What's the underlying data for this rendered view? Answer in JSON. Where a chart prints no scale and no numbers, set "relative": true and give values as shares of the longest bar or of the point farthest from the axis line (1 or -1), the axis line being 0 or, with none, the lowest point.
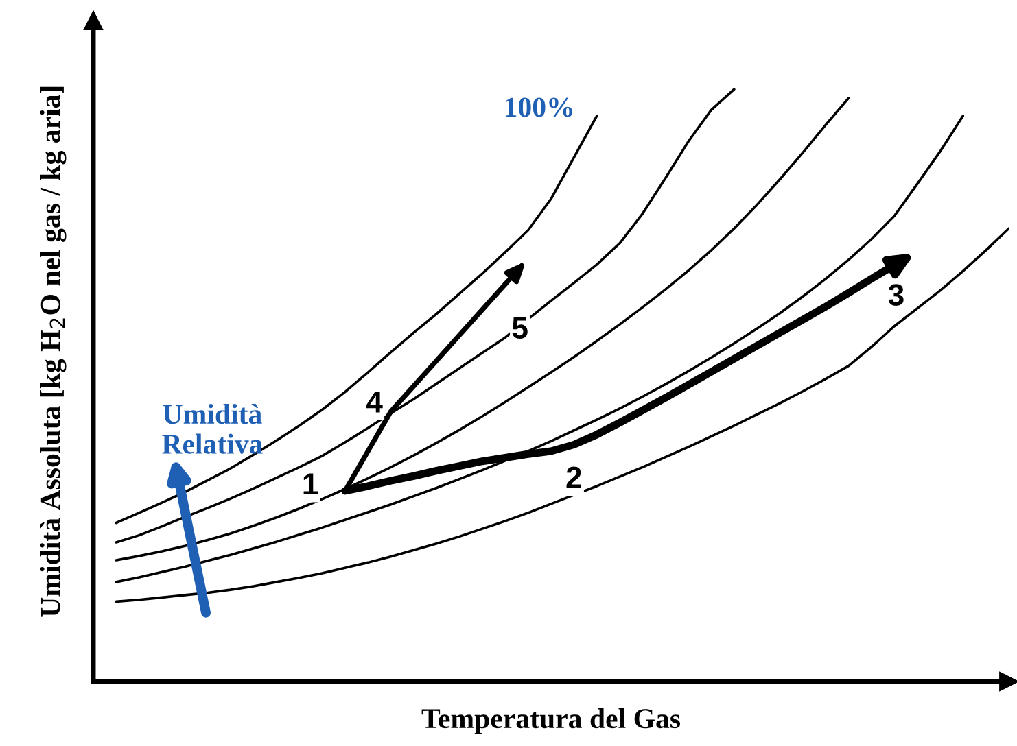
{
  "chart_data": {
    "type": "line",
    "relative": true,
    "xlabel": "Temperatura del Gas",
    "ylabel": "Umidità Assoluta [kg H$_{2}$O nel gas / kg aria]",
    "legend": false,
    "marker": "none",
    "line_style": "solid",
    "categories": [
      null,
      null,
      null,
      null,
      null,
      null,
      null,
      null,
      null,
      null,
      null,
      null,
      null,
      null,
      null,
      null,
      null,
      null,
      null,
      null,
      null,
      null,
      null,
      null,
      null,
      null,
      null,
      null,
      null,
      null,
      null,
      null,
      null,
      null,
      null,
      null,
      null,
      null,
      null,
      null,
      null
    ],
    "series": [
      {
        "color": "#000000",
        "values": [
          null,
          0.268,
          0.285,
          0.302,
          0.32,
          0.34,
          0.36,
          0.383,
          0.407,
          0.432,
          0.459,
          0.489,
          0.522,
          0.556,
          0.589,
          0.621,
          0.655,
          0.689,
          0.725,
          0.762,
          0.815,
          0.885,
          0.955,
          null,
          null,
          null,
          null,
          null,
          null,
          null,
          null,
          null,
          null,
          null,
          null,
          null,
          null,
          null,
          null,
          null,
          null
        ]
      },
      {
        "color": "#000000",
        "values": [
          null,
          0.235,
          0.247,
          0.262,
          0.278,
          0.293,
          0.309,
          0.326,
          0.344,
          0.362,
          0.381,
          0.404,
          0.428,
          0.453,
          0.477,
          0.503,
          0.529,
          0.555,
          0.581,
          0.612,
          0.643,
          0.673,
          0.704,
          0.74,
          0.79,
          0.85,
          0.912,
          0.965,
          1.0,
          null,
          null,
          null,
          null,
          null,
          null,
          null,
          null,
          null,
          null,
          null,
          null
        ]
      },
      {
        "color": "#000000",
        "values": [
          null,
          0.205,
          0.212,
          0.22,
          0.229,
          0.239,
          0.25,
          0.263,
          0.277,
          0.292,
          0.308,
          0.325,
          0.343,
          0.362,
          0.382,
          0.403,
          0.425,
          0.448,
          0.472,
          0.497,
          0.522,
          0.548,
          0.575,
          0.603,
          0.632,
          0.662,
          0.694,
          0.728,
          0.765,
          0.805,
          0.848,
          0.893,
          0.94,
          0.985,
          null,
          null,
          null,
          null,
          null,
          null,
          null
        ]
      },
      {
        "color": "#000000",
        "values": [
          null,
          0.168,
          0.176,
          0.185,
          0.194,
          0.204,
          0.214,
          0.225,
          0.236,
          0.248,
          0.26,
          0.273,
          0.286,
          0.299,
          0.313,
          0.327,
          0.342,
          0.357,
          0.373,
          0.389,
          0.406,
          0.424,
          0.442,
          0.461,
          0.481,
          0.502,
          0.524,
          0.547,
          0.571,
          0.596,
          0.622,
          0.65,
          0.68,
          0.712,
          0.747,
          0.786,
          0.84,
          0.895,
          0.955,
          null,
          null
        ]
      },
      {
        "color": "#000000",
        "values": [
          null,
          0.135,
          0.138,
          0.142,
          0.146,
          0.15,
          0.155,
          0.161,
          0.168,
          0.175,
          0.183,
          0.192,
          0.201,
          0.211,
          0.222,
          0.233,
          0.245,
          0.258,
          0.271,
          0.285,
          0.3,
          0.315,
          0.33,
          0.346,
          0.362,
          0.379,
          0.396,
          0.414,
          0.432,
          0.451,
          0.47,
          0.49,
          0.511,
          0.533,
          0.565,
          0.6,
          0.63,
          0.66,
          0.693,
          0.728,
          0.765
        ]
      },
      {
        "color": "#000000",
        "values": [
          null,
          null,
          null,
          null,
          null,
          null,
          null,
          null,
          null,
          null,
          null,
          0.322,
          0.389,
          0.456,
          0.499,
          0.542,
          0.585,
          0.628,
          0.671,
          null,
          null,
          null,
          null,
          null,
          null,
          null,
          null,
          null,
          null,
          null,
          null,
          null,
          null,
          null,
          null,
          null,
          null,
          null,
          null,
          null,
          null
        ]
      },
      {
        "color": "#000000",
        "values": [
          null,
          null,
          null,
          null,
          null,
          null,
          null,
          null,
          null,
          null,
          null,
          0.322,
          0.33,
          0.339,
          0.347,
          0.356,
          0.364,
          0.372,
          0.378,
          0.384,
          0.389,
          0.4,
          0.417,
          0.437,
          0.458,
          0.479,
          0.501,
          0.523,
          0.545,
          0.567,
          0.589,
          0.611,
          0.633,
          0.656,
          0.68,
          0.703,
          null,
          null,
          null,
          null,
          null
        ]
      }
    ],
    "annotations": [
      "100%",
      "1",
      "2",
      "3",
      "4",
      "5",
      "Umidità\nRelativa"
    ]
  }
}
